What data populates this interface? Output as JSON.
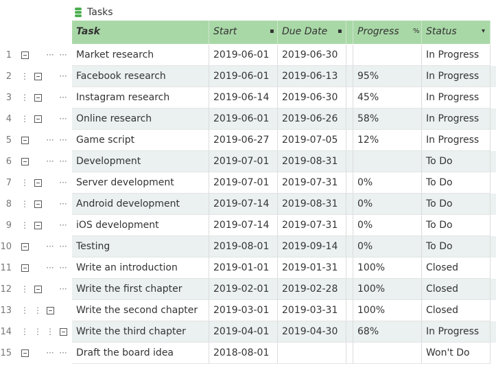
{
  "title": "Tasks",
  "table": {
    "headers": [
      "Task",
      "Start",
      "Due Date",
      "Progress",
      "Status"
    ],
    "rows": [
      {
        "number": 1,
        "level": 0,
        "task": "Market research",
        "start": "2019-06-01",
        "due": "2019-06-30",
        "progress": null,
        "status": "In Progress"
      },
      {
        "number": 2,
        "level": 1,
        "task": "Facebook research",
        "start": "2019-06-01",
        "due": "2019-06-13",
        "progress": "95%",
        "status": "In Progress"
      },
      {
        "number": 3,
        "level": 1,
        "task": "Instagram research",
        "start": "2019-06-14",
        "due": "2019-06-30",
        "progress": "45%",
        "status": "In Progress"
      },
      {
        "number": 4,
        "level": 1,
        "task": "Online research",
        "start": "2019-06-01",
        "due": "2019-06-26",
        "progress": "58%",
        "status": "In Progress"
      },
      {
        "number": 5,
        "level": 0,
        "task": "Game script",
        "start": "2019-06-27",
        "due": "2019-07-05",
        "progress": "12%",
        "status": "In Progress"
      },
      {
        "number": 6,
        "level": 0,
        "task": "Development",
        "start": "2019-07-01",
        "due": "2019-08-31",
        "progress": null,
        "status": "To Do"
      },
      {
        "number": 7,
        "level": 1,
        "task": "Server development",
        "start": "2019-07-01",
        "due": "2019-07-31",
        "progress": "0%",
        "status": "To Do"
      },
      {
        "number": 8,
        "level": 1,
        "task": "Android development",
        "start": "2019-07-14",
        "due": "2019-08-31",
        "progress": "0%",
        "status": "To Do"
      },
      {
        "number": 9,
        "level": 1,
        "task": "iOS development",
        "start": "2019-07-14",
        "due": "2019-07-31",
        "progress": "0%",
        "status": "To Do"
      },
      {
        "number": 10,
        "level": 0,
        "task": "Testing",
        "start": "2019-08-01",
        "due": "2019-09-14",
        "progress": "0%",
        "status": "To Do"
      },
      {
        "number": 11,
        "level": 0,
        "task": "Write an introduction",
        "start": "2019-01-01",
        "due": "2019-01-31",
        "progress": "100%",
        "status": "Closed"
      },
      {
        "number": 12,
        "level": 1,
        "task": "Write the first chapter",
        "start": "2019-02-01",
        "due": "2019-02-28",
        "progress": "100%",
        "status": "Closed"
      },
      {
        "number": 13,
        "level": 2,
        "task": "Write the second chapter",
        "start": "2019-03-01",
        "due": "2019-03-31",
        "progress": "100%",
        "status": "Closed"
      },
      {
        "number": 14,
        "level": 3,
        "task": "Write the third chapter",
        "start": "2019-04-01",
        "due": "2019-04-30",
        "progress": "68%",
        "status": "In Progress"
      },
      {
        "number": 15,
        "level": 0,
        "task": "Draft the board idea",
        "start": "2018-08-01",
        "due": null,
        "progress": null,
        "status": "Won't Do"
      }
    ]
  }
}
